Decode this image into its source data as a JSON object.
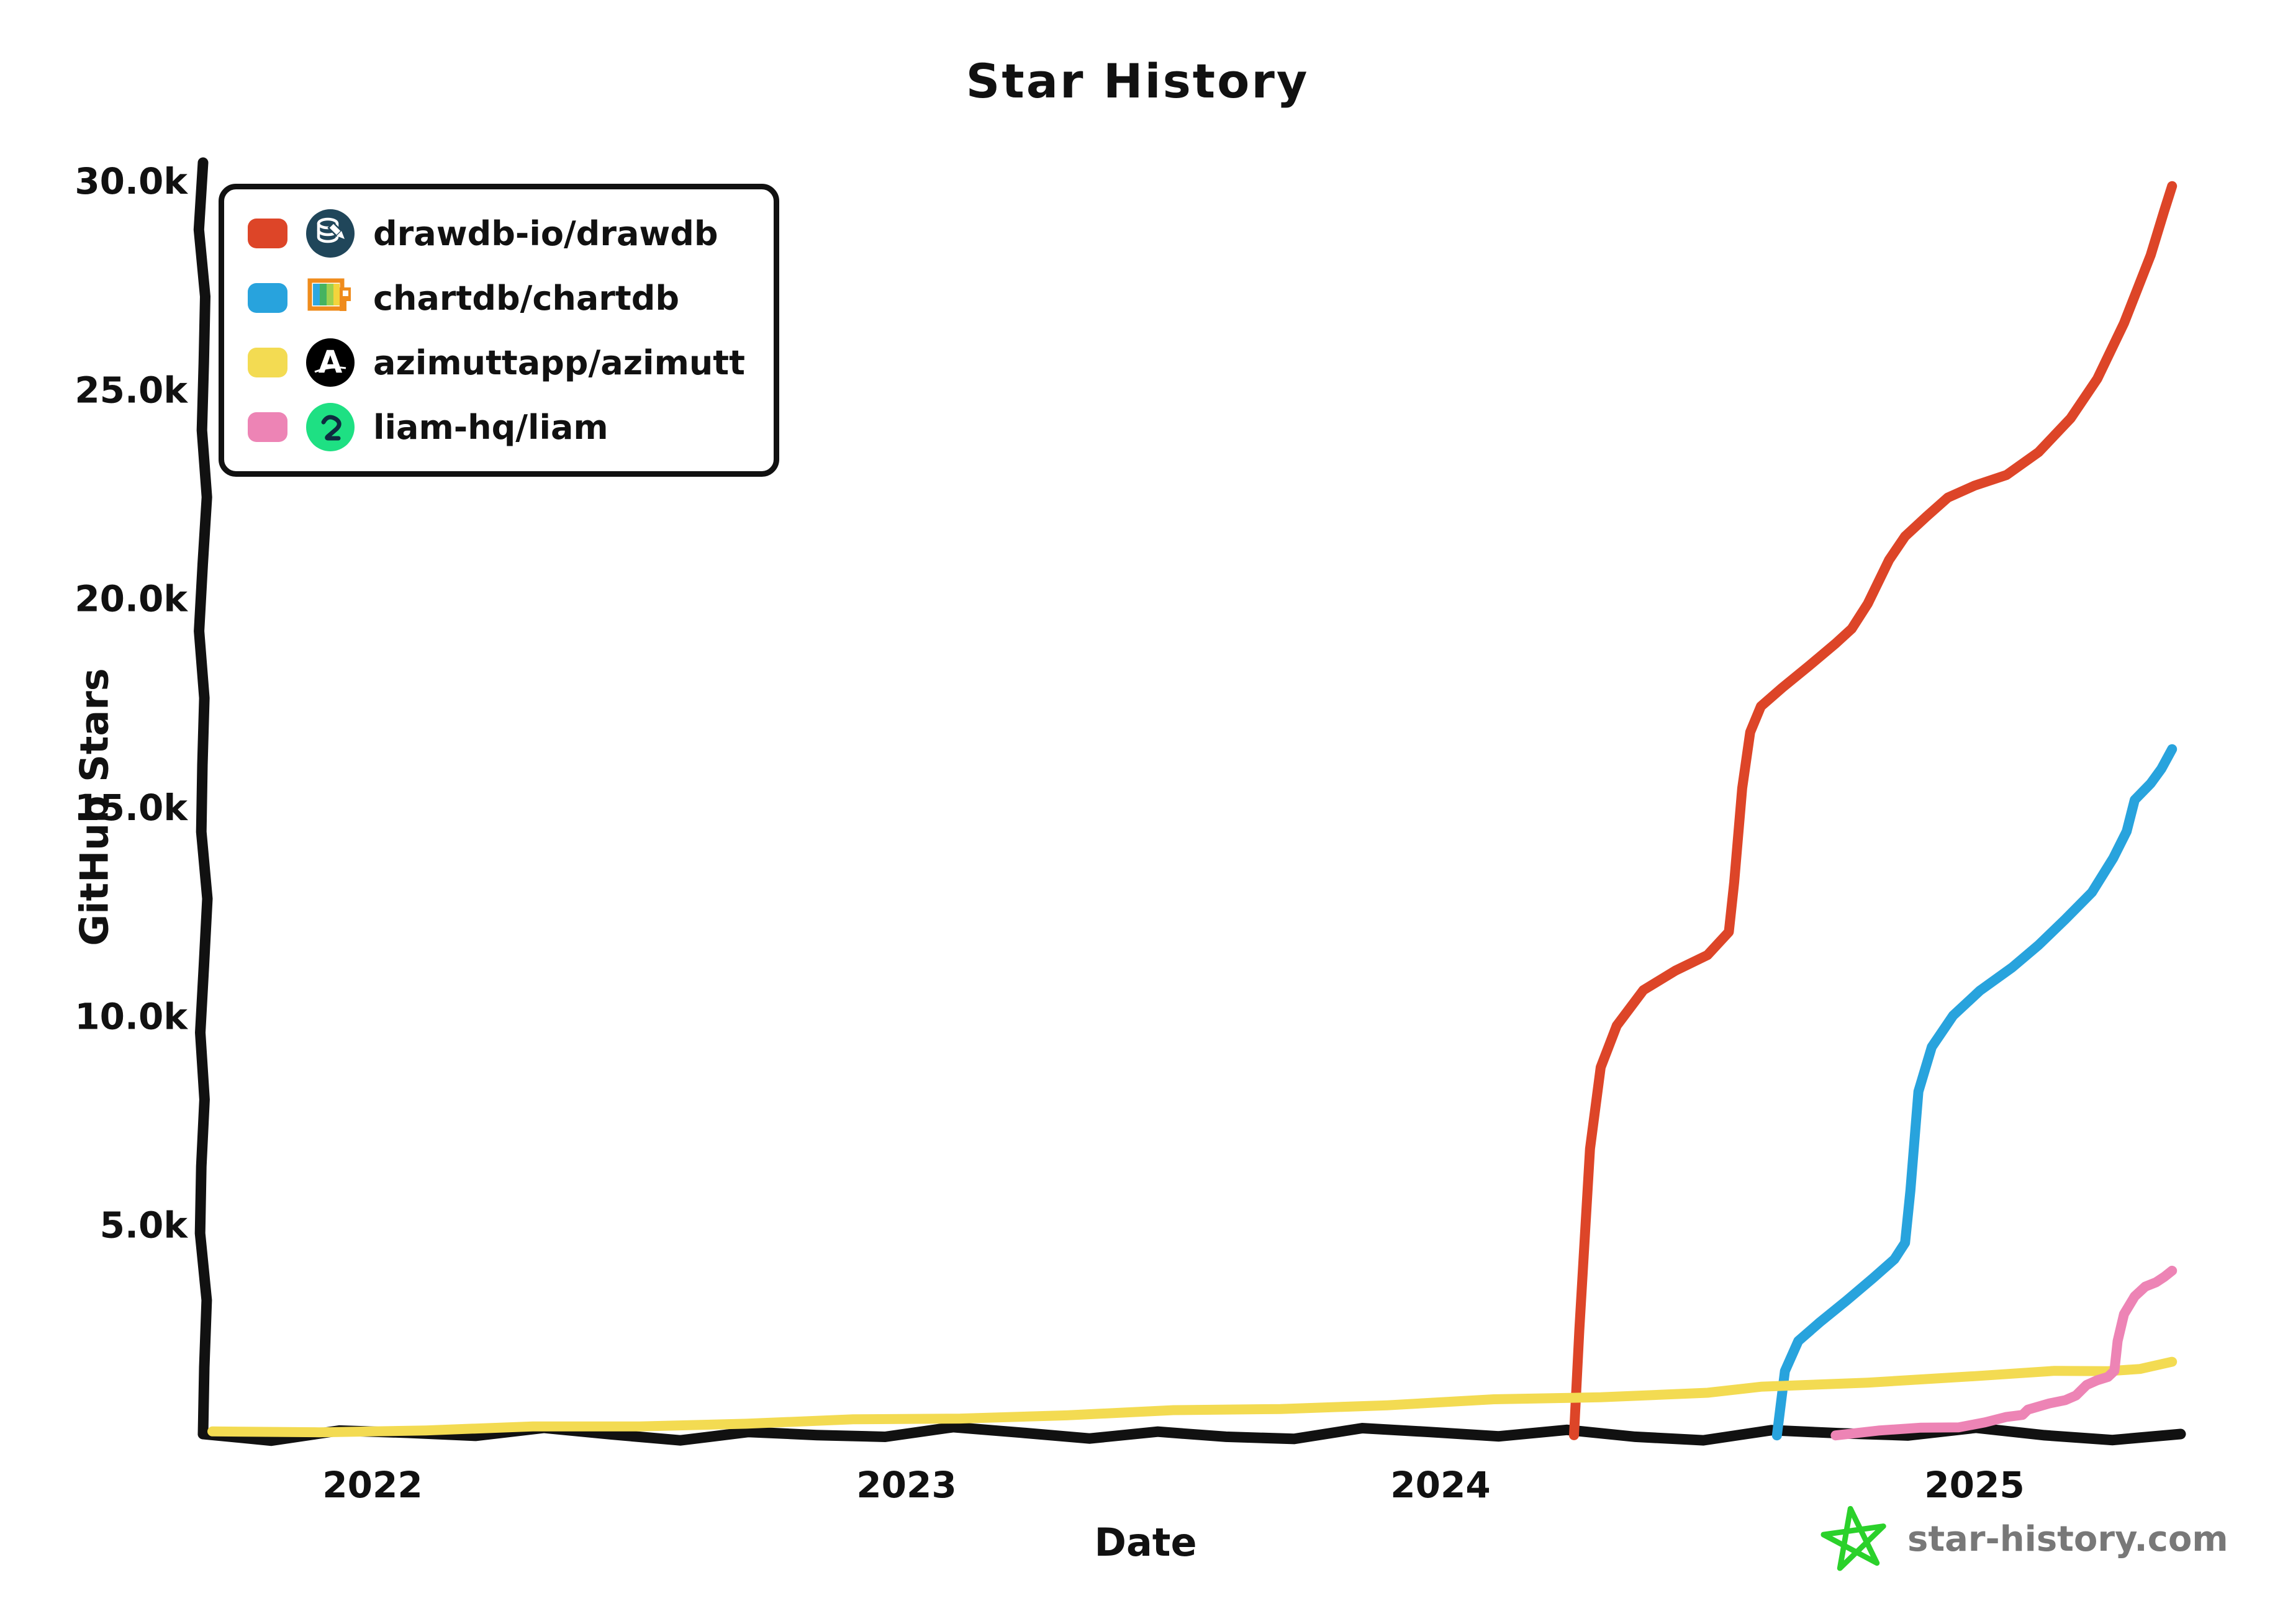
{
  "chart_data": {
    "type": "line",
    "title": "Star History",
    "xlabel": "Date",
    "ylabel": "GitHub Stars",
    "x_ticks": [
      {
        "label": "2022",
        "t": 2022
      },
      {
        "label": "2023",
        "t": 2023
      },
      {
        "label": "2024",
        "t": 2024
      },
      {
        "label": "2025",
        "t": 2025
      }
    ],
    "y_ticks": [
      {
        "label": "5.0k",
        "stars": 5000
      },
      {
        "label": "10.0k",
        "stars": 10000
      },
      {
        "label": "15.0k",
        "stars": 15000
      },
      {
        "label": "20.0k",
        "stars": 20000
      },
      {
        "label": "25.0k",
        "stars": 25000
      },
      {
        "label": "30.0k",
        "stars": 30000
      }
    ],
    "x_range_years": [
      2021.69,
      2025.38
    ],
    "y_range": [
      0,
      30000
    ],
    "grid": false,
    "legend_position": "top-left",
    "series": [
      {
        "name": "drawdb-io/drawdb",
        "color": "#dd4528",
        "icon": "drawdb-database-icon",
        "points": [
          [
            2024.25,
            0
          ],
          [
            2024.26,
            2500
          ],
          [
            2024.28,
            6800
          ],
          [
            2024.3,
            8800
          ],
          [
            2024.33,
            9800
          ],
          [
            2024.38,
            10600
          ],
          [
            2024.44,
            11100
          ],
          [
            2024.5,
            11500
          ],
          [
            2024.54,
            12000
          ],
          [
            2024.55,
            13200
          ],
          [
            2024.565,
            15500
          ],
          [
            2024.58,
            16800
          ],
          [
            2024.6,
            17400
          ],
          [
            2024.64,
            17900
          ],
          [
            2024.69,
            18400
          ],
          [
            2024.74,
            18900
          ],
          [
            2024.77,
            19300
          ],
          [
            2024.8,
            19900
          ],
          [
            2024.84,
            20900
          ],
          [
            2024.87,
            21500
          ],
          [
            2024.91,
            22000
          ],
          [
            2024.95,
            22400
          ],
          [
            2025.0,
            22700
          ],
          [
            2025.06,
            23000
          ],
          [
            2025.12,
            23500
          ],
          [
            2025.18,
            24300
          ],
          [
            2025.23,
            25300
          ],
          [
            2025.28,
            26600
          ],
          [
            2025.33,
            28200
          ],
          [
            2025.355,
            29300
          ],
          [
            2025.37,
            29900
          ]
        ]
      },
      {
        "name": "chartdb/chartdb",
        "color": "#28a3dd",
        "icon": "chartdb-flag-icon",
        "points": [
          [
            2024.63,
            0
          ],
          [
            2024.645,
            1500
          ],
          [
            2024.67,
            2200
          ],
          [
            2024.71,
            2700
          ],
          [
            2024.76,
            3200
          ],
          [
            2024.81,
            3700
          ],
          [
            2024.85,
            4200
          ],
          [
            2024.87,
            4600
          ],
          [
            2024.88,
            5800
          ],
          [
            2024.895,
            8200
          ],
          [
            2024.92,
            9300
          ],
          [
            2024.96,
            10000
          ],
          [
            2025.01,
            10600
          ],
          [
            2025.07,
            11200
          ],
          [
            2025.12,
            11700
          ],
          [
            2025.17,
            12300
          ],
          [
            2025.22,
            13000
          ],
          [
            2025.26,
            13800
          ],
          [
            2025.285,
            14400
          ],
          [
            2025.3,
            15200
          ],
          [
            2025.33,
            15600
          ],
          [
            2025.35,
            15900
          ],
          [
            2025.37,
            16400
          ]
        ]
      },
      {
        "name": "azimuttapp/azimutt",
        "color": "#f3db52",
        "icon": "azimutt-a-icon",
        "points": [
          [
            2021.7,
            30
          ],
          [
            2021.9,
            60
          ],
          [
            2022.1,
            100
          ],
          [
            2022.3,
            150
          ],
          [
            2022.5,
            200
          ],
          [
            2022.7,
            260
          ],
          [
            2022.9,
            320
          ],
          [
            2023.1,
            390
          ],
          [
            2023.3,
            460
          ],
          [
            2023.5,
            540
          ],
          [
            2023.7,
            620
          ],
          [
            2023.9,
            700
          ],
          [
            2024.1,
            800
          ],
          [
            2024.3,
            900
          ],
          [
            2024.5,
            1000
          ],
          [
            2024.6,
            1100
          ],
          [
            2024.8,
            1250
          ],
          [
            2025.0,
            1400
          ],
          [
            2025.15,
            1480
          ],
          [
            2025.25,
            1520
          ],
          [
            2025.31,
            1580
          ],
          [
            2025.37,
            1700
          ]
        ]
      },
      {
        "name": "liam-hq/liam",
        "color": "#ed84b5",
        "icon": "liam-elephant-icon",
        "points": [
          [
            2024.74,
            0
          ],
          [
            2024.82,
            70
          ],
          [
            2024.9,
            130
          ],
          [
            2024.97,
            190
          ],
          [
            2025.02,
            280
          ],
          [
            2025.06,
            380
          ],
          [
            2025.09,
            480
          ],
          [
            2025.1,
            600
          ],
          [
            2025.14,
            700
          ],
          [
            2025.17,
            820
          ],
          [
            2025.19,
            950
          ],
          [
            2025.21,
            1150
          ],
          [
            2025.23,
            1280
          ],
          [
            2025.25,
            1400
          ],
          [
            2025.262,
            1500
          ],
          [
            2025.268,
            2200
          ],
          [
            2025.28,
            2900
          ],
          [
            2025.3,
            3300
          ],
          [
            2025.32,
            3500
          ],
          [
            2025.34,
            3650
          ],
          [
            2025.355,
            3780
          ],
          [
            2025.37,
            3880
          ]
        ]
      }
    ]
  },
  "watermark": {
    "text": "star-history.com",
    "star_color": "#2bd12b",
    "text_color": "#787878"
  },
  "colors": {
    "background": "#ffffff",
    "axis": "#111111",
    "text": "#111111"
  }
}
